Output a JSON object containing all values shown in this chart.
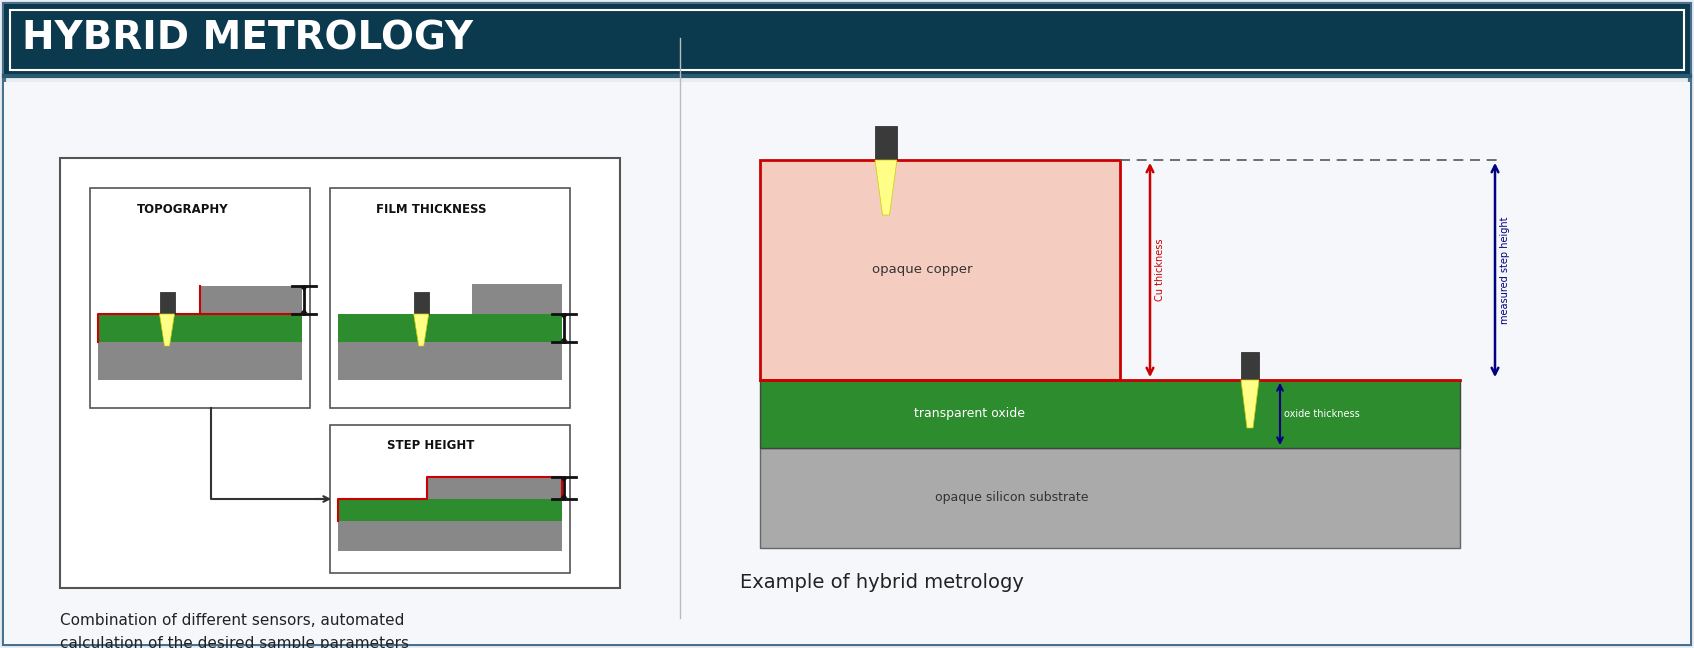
{
  "title": "HYBRID METROLOGY",
  "title_bg_dark": "#0b3a4e",
  "title_bg_mid": "#0d4a60",
  "title_text_color": "#ffffff",
  "body_bg": "#e8edf2",
  "panel_bg": "#ffffff",
  "border_dark": "#1a3a5c",
  "caption_color": "#222222",
  "green_color": "#2d8c2d",
  "gray_dark": "#888888",
  "gray_mid": "#aaaaaa",
  "gray_light": "#cccccc",
  "red_line": "#cc0000",
  "copper_fill": "#f5cdc0",
  "copper_border": "#cc0000",
  "black": "#111111",
  "cu_arrow_color": "#cc0000",
  "step_arrow_color": "#000080",
  "oxide_arrow_color": "#000080",
  "left_caption_line1": "Combination of different sensors, automated",
  "left_caption_line2": "calculation of the desired sample parameters",
  "right_caption": "Example of hybrid metrology"
}
